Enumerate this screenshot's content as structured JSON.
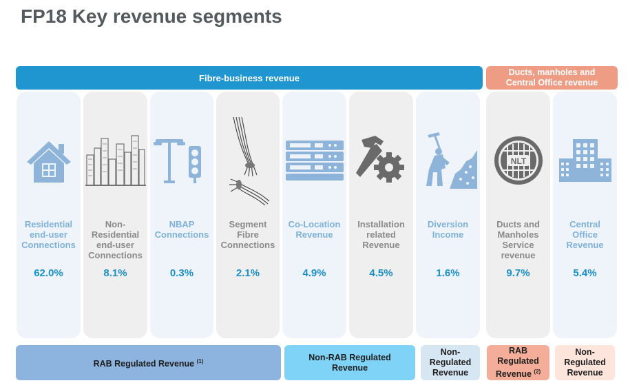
{
  "title": "FP18 Key revenue segments",
  "banners": {
    "fibre": "Fibre-business revenue",
    "ducts_line1": "Ducts, manholes and",
    "ducts_line2": "Central Office revenue"
  },
  "columns": [
    {
      "label": [
        "Residential",
        "end-user",
        "Connections"
      ],
      "value": "62.0%",
      "icon": "house-icon",
      "tone": "blue"
    },
    {
      "label": [
        "Non-",
        "Residential",
        "end-user",
        "Connections"
      ],
      "value": "8.1%",
      "icon": "city-skyline-icon",
      "tone": "gray"
    },
    {
      "label": [
        "NBAP",
        "Connections"
      ],
      "value": "0.3%",
      "icon": "streetlight-traffic-light-icon",
      "tone": "blue"
    },
    {
      "label": [
        "Segment",
        "Fibre",
        "Connections"
      ],
      "value": "2.1%",
      "icon": "fibre-cable-icon",
      "tone": "gray"
    },
    {
      "label": [
        "Co-Location",
        "Revenue"
      ],
      "value": "4.9%",
      "icon": "server-rack-icon",
      "tone": "blue"
    },
    {
      "label": [
        "Installation",
        "related",
        "Revenue"
      ],
      "value": "4.5%",
      "icon": "hammer-gear-icon",
      "tone": "gray"
    },
    {
      "label": [
        "Diversion",
        "Income"
      ],
      "value": "1.6%",
      "icon": "digging-worker-icon",
      "tone": "blue"
    },
    {
      "label": [
        "Ducts and",
        "Manholes",
        "Service",
        "revenue"
      ],
      "value": "9.7%",
      "icon": "manhole-cover-icon",
      "tone": "gray",
      "icon_text": "NLT"
    },
    {
      "label": [
        "Central",
        "Office",
        "Revenue"
      ],
      "value": "5.4%",
      "icon": "office-building-icon",
      "tone": "blue"
    }
  ],
  "bottom": {
    "rab": {
      "text": "RAB Regulated Revenue",
      "sup": "(1)"
    },
    "nonrab": [
      "Non-RAB Regulated",
      "Revenue"
    ],
    "nonreg1": [
      "Non-",
      "Regulated",
      "Revenue"
    ],
    "rab2": {
      "lines": [
        "RAB",
        "Regulated",
        "Revenue"
      ],
      "sup": "(2)"
    },
    "nonreg2": [
      "Non-",
      "Regulated",
      "Revenue"
    ]
  },
  "colors": {
    "fibre_banner": "#1f96cf",
    "ducts_banner": "#ef9c85",
    "value_text": "#1a8fc8",
    "icon_blue": "#8fb4d9",
    "icon_gray": "#7d7d7d"
  }
}
